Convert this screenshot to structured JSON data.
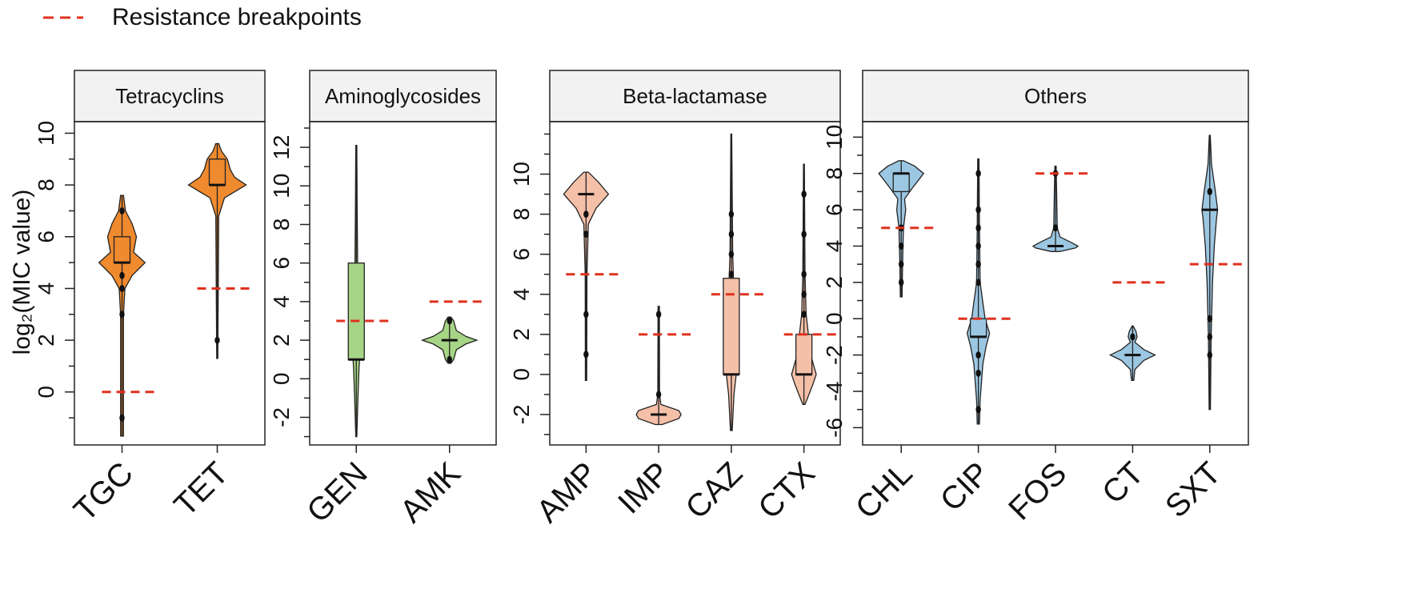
{
  "legend": {
    "label": "Resistance breakpoints",
    "color": "#e0301e"
  },
  "ylabel": "log₂(MIC value)",
  "colors": {
    "Tetracyclins": "#f08a2e",
    "Aminoglycosides": "#a6d585",
    "Beta-lactamase": "#f5c0a8",
    "Others": "#9cc7e2",
    "breakpoint": "#e0301e",
    "header_bg": "#f2f2f2"
  },
  "chart_data": [
    {
      "type": "violin",
      "title": "Tetracyclins",
      "yticks": [
        0,
        2,
        4,
        6,
        8,
        10
      ],
      "ylim": [
        -1.8,
        10.2
      ],
      "categories": [
        "TGC",
        "TET"
      ],
      "series": [
        {
          "name": "TGC",
          "min": -1.7,
          "max": 7.6,
          "q1": 5.0,
          "median": 5.0,
          "q3": 6.0,
          "density": [
            [
              -1.7,
              0.05
            ],
            [
              3.0,
              0.05
            ],
            [
              4.0,
              0.1
            ],
            [
              4.5,
              0.35
            ],
            [
              5.0,
              0.8
            ],
            [
              5.4,
              0.4
            ],
            [
              6.0,
              0.5
            ],
            [
              6.5,
              0.35
            ],
            [
              7.0,
              0.12
            ],
            [
              7.6,
              0.05
            ]
          ],
          "outliers": [
            -1.0,
            3.0,
            4.0,
            4.5,
            7.0
          ],
          "breakpoint": 0
        },
        {
          "name": "TET",
          "min": 1.3,
          "max": 9.6,
          "q1": 8.0,
          "median": 8.0,
          "q3": 9.0,
          "density": [
            [
              1.3,
              0.02
            ],
            [
              6.8,
              0.05
            ],
            [
              7.5,
              0.25
            ],
            [
              7.8,
              0.7
            ],
            [
              8.0,
              1.0
            ],
            [
              8.3,
              0.6
            ],
            [
              8.6,
              0.45
            ],
            [
              9.0,
              0.35
            ],
            [
              9.3,
              0.15
            ],
            [
              9.6,
              0.05
            ]
          ],
          "outliers": [
            2.0
          ],
          "breakpoint": 4
        }
      ]
    },
    {
      "type": "violin",
      "title": "Aminoglycosides",
      "yticks": [
        -2,
        0,
        2,
        4,
        6,
        8,
        10,
        12
      ],
      "ylim": [
        -3.1,
        13.0
      ],
      "categories": [
        "GEN",
        "AMK"
      ],
      "series": [
        {
          "name": "GEN",
          "min": -3.0,
          "max": 12.1,
          "q1": 1.0,
          "median": 1.0,
          "q3": 6.0,
          "density": [
            [
              -3.0,
              0.02
            ],
            [
              -1.0,
              0.06
            ],
            [
              0.5,
              0.1
            ],
            [
              1.0,
              0.12
            ],
            [
              2.0,
              0.1
            ],
            [
              4.0,
              0.08
            ],
            [
              6.0,
              0.05
            ],
            [
              9.0,
              0.03
            ],
            [
              12.1,
              0.02
            ]
          ],
          "outliers": [],
          "breakpoint": 3
        },
        {
          "name": "AMK",
          "min": 0.8,
          "max": 3.2,
          "q1": 2.0,
          "median": 2.0,
          "q3": 2.0,
          "density": [
            [
              0.8,
              0.05
            ],
            [
              1.0,
              0.15
            ],
            [
              1.5,
              0.25
            ],
            [
              1.8,
              0.6
            ],
            [
              2.0,
              1.0
            ],
            [
              2.2,
              0.6
            ],
            [
              2.5,
              0.25
            ],
            [
              3.0,
              0.15
            ],
            [
              3.2,
              0.05
            ]
          ],
          "outliers": [
            1.0,
            3.0
          ],
          "breakpoint": 4
        }
      ]
    },
    {
      "type": "violin",
      "title": "Beta-lactamase",
      "yticks": [
        -2,
        0,
        2,
        4,
        6,
        8,
        10
      ],
      "ylim": [
        -3.2,
        12.3
      ],
      "categories": [
        "AMP",
        "IMP",
        "CAZ",
        "CTX"
      ],
      "series": [
        {
          "name": "AMP",
          "min": -0.3,
          "max": 10.1,
          "q1": 9.0,
          "median": 9.0,
          "q3": 9.0,
          "density": [
            [
              -0.3,
              0.03
            ],
            [
              5.0,
              0.04
            ],
            [
              7.5,
              0.1
            ],
            [
              8.3,
              0.45
            ],
            [
              9.0,
              1.0
            ],
            [
              9.6,
              0.55
            ],
            [
              10.1,
              0.1
            ]
          ],
          "outliers": [
            1.0,
            3.0,
            7.0,
            8.0
          ],
          "breakpoint": 5
        },
        {
          "name": "IMP",
          "min": -2.5,
          "max": 3.4,
          "q1": -2.0,
          "median": -2.0,
          "q3": -2.0,
          "density": [
            [
              -2.5,
              0.15
            ],
            [
              -2.2,
              0.9
            ],
            [
              -2.0,
              1.0
            ],
            [
              -1.8,
              0.9
            ],
            [
              -1.5,
              0.1
            ],
            [
              -1.0,
              0.04
            ],
            [
              3.4,
              0.03
            ]
          ],
          "outliers": [
            -1.0,
            3.0
          ],
          "breakpoint": 2
        },
        {
          "name": "CAZ",
          "min": -2.8,
          "max": 12.0,
          "q1": 0.0,
          "median": 0.0,
          "q3": 4.8,
          "density": [
            [
              -2.8,
              0.04
            ],
            [
              -1.0,
              0.12
            ],
            [
              0.0,
              0.22
            ],
            [
              2.0,
              0.18
            ],
            [
              4.0,
              0.12
            ],
            [
              6.0,
              0.06
            ],
            [
              9.0,
              0.04
            ],
            [
              12.0,
              0.02
            ]
          ],
          "outliers": [
            5.0,
            6.0,
            7.0,
            8.0
          ],
          "breakpoint": 4
        },
        {
          "name": "CTX",
          "min": -1.5,
          "max": 10.5,
          "q1": 0.0,
          "median": 0.0,
          "q3": 2.0,
          "density": [
            [
              -1.5,
              0.05
            ],
            [
              -0.5,
              0.4
            ],
            [
              0.0,
              0.55
            ],
            [
              1.0,
              0.3
            ],
            [
              2.0,
              0.2
            ],
            [
              3.0,
              0.1
            ],
            [
              5.0,
              0.05
            ],
            [
              10.5,
              0.02
            ]
          ],
          "outliers": [
            3.0,
            4.0,
            5.0,
            7.0,
            9.0
          ],
          "breakpoint": 2
        }
      ]
    },
    {
      "type": "violin",
      "title": "Others",
      "yticks": [
        -6,
        -4,
        -2,
        0,
        2,
        4,
        6,
        8,
        10
      ],
      "ylim": [
        -6.6,
        10.5
      ],
      "categories": [
        "CHL",
        "CIP",
        "FOS",
        "CT",
        "SXT"
      ],
      "series": [
        {
          "name": "CHL",
          "min": 1.2,
          "max": 8.7,
          "q1": 7.0,
          "median": 8.0,
          "q3": 8.0,
          "density": [
            [
              1.2,
              0.04
            ],
            [
              3.0,
              0.06
            ],
            [
              5.0,
              0.1
            ],
            [
              6.0,
              0.2
            ],
            [
              6.6,
              0.15
            ],
            [
              7.2,
              0.5
            ],
            [
              8.0,
              1.0
            ],
            [
              8.4,
              0.6
            ],
            [
              8.7,
              0.1
            ]
          ],
          "outliers": [
            2.0,
            3.0,
            4.0,
            5.0
          ],
          "breakpoint": 5
        },
        {
          "name": "CIP",
          "min": -5.8,
          "max": 8.8,
          "q1": -1.0,
          "median": -1.0,
          "q3": 0.0,
          "density": [
            [
              -5.8,
              0.05
            ],
            [
              -4.5,
              0.08
            ],
            [
              -2.5,
              0.2
            ],
            [
              -1.5,
              0.35
            ],
            [
              -0.8,
              0.5
            ],
            [
              0.0,
              0.3
            ],
            [
              2.0,
              0.08
            ],
            [
              5.0,
              0.05
            ],
            [
              8.8,
              0.03
            ]
          ],
          "outliers": [
            -5.0,
            -3.0,
            -2.0,
            2.0,
            3.0,
            4.0,
            5.0,
            6.0,
            8.0
          ],
          "breakpoint": 0
        },
        {
          "name": "FOS",
          "min": 3.7,
          "max": 8.4,
          "q1": 4.0,
          "median": 4.0,
          "q3": 4.0,
          "density": [
            [
              3.7,
              0.2
            ],
            [
              3.9,
              0.9
            ],
            [
              4.0,
              1.0
            ],
            [
              4.2,
              0.7
            ],
            [
              4.5,
              0.2
            ],
            [
              5.0,
              0.08
            ],
            [
              7.0,
              0.05
            ],
            [
              8.4,
              0.03
            ]
          ],
          "outliers": [
            5.0,
            8.0
          ],
          "breakpoint": 8
        },
        {
          "name": "CT",
          "min": -3.4,
          "max": -0.4,
          "q1": -2.0,
          "median": -2.0,
          "q3": -2.0,
          "density": [
            [
              -3.4,
              0.05
            ],
            [
              -2.8,
              0.1
            ],
            [
              -2.3,
              0.5
            ],
            [
              -2.0,
              1.0
            ],
            [
              -1.7,
              0.5
            ],
            [
              -1.3,
              0.1
            ],
            [
              -1.0,
              0.2
            ],
            [
              -0.7,
              0.15
            ],
            [
              -0.4,
              0.02
            ]
          ],
          "outliers": [
            -1.0
          ],
          "breakpoint": 2
        },
        {
          "name": "SXT",
          "min": -5.0,
          "max": 10.1,
          "q1": 6.0,
          "median": 6.0,
          "q3": 6.0,
          "density": [
            [
              -5.0,
              0.03
            ],
            [
              -1.0,
              0.06
            ],
            [
              2.0,
              0.12
            ],
            [
              4.0,
              0.2
            ],
            [
              5.5,
              0.3
            ],
            [
              6.0,
              0.35
            ],
            [
              7.0,
              0.25
            ],
            [
              8.5,
              0.08
            ],
            [
              10.1,
              0.02
            ]
          ],
          "outliers": [
            -2.0,
            -1.0,
            0.0,
            7.0
          ],
          "breakpoint": 3
        }
      ]
    }
  ]
}
